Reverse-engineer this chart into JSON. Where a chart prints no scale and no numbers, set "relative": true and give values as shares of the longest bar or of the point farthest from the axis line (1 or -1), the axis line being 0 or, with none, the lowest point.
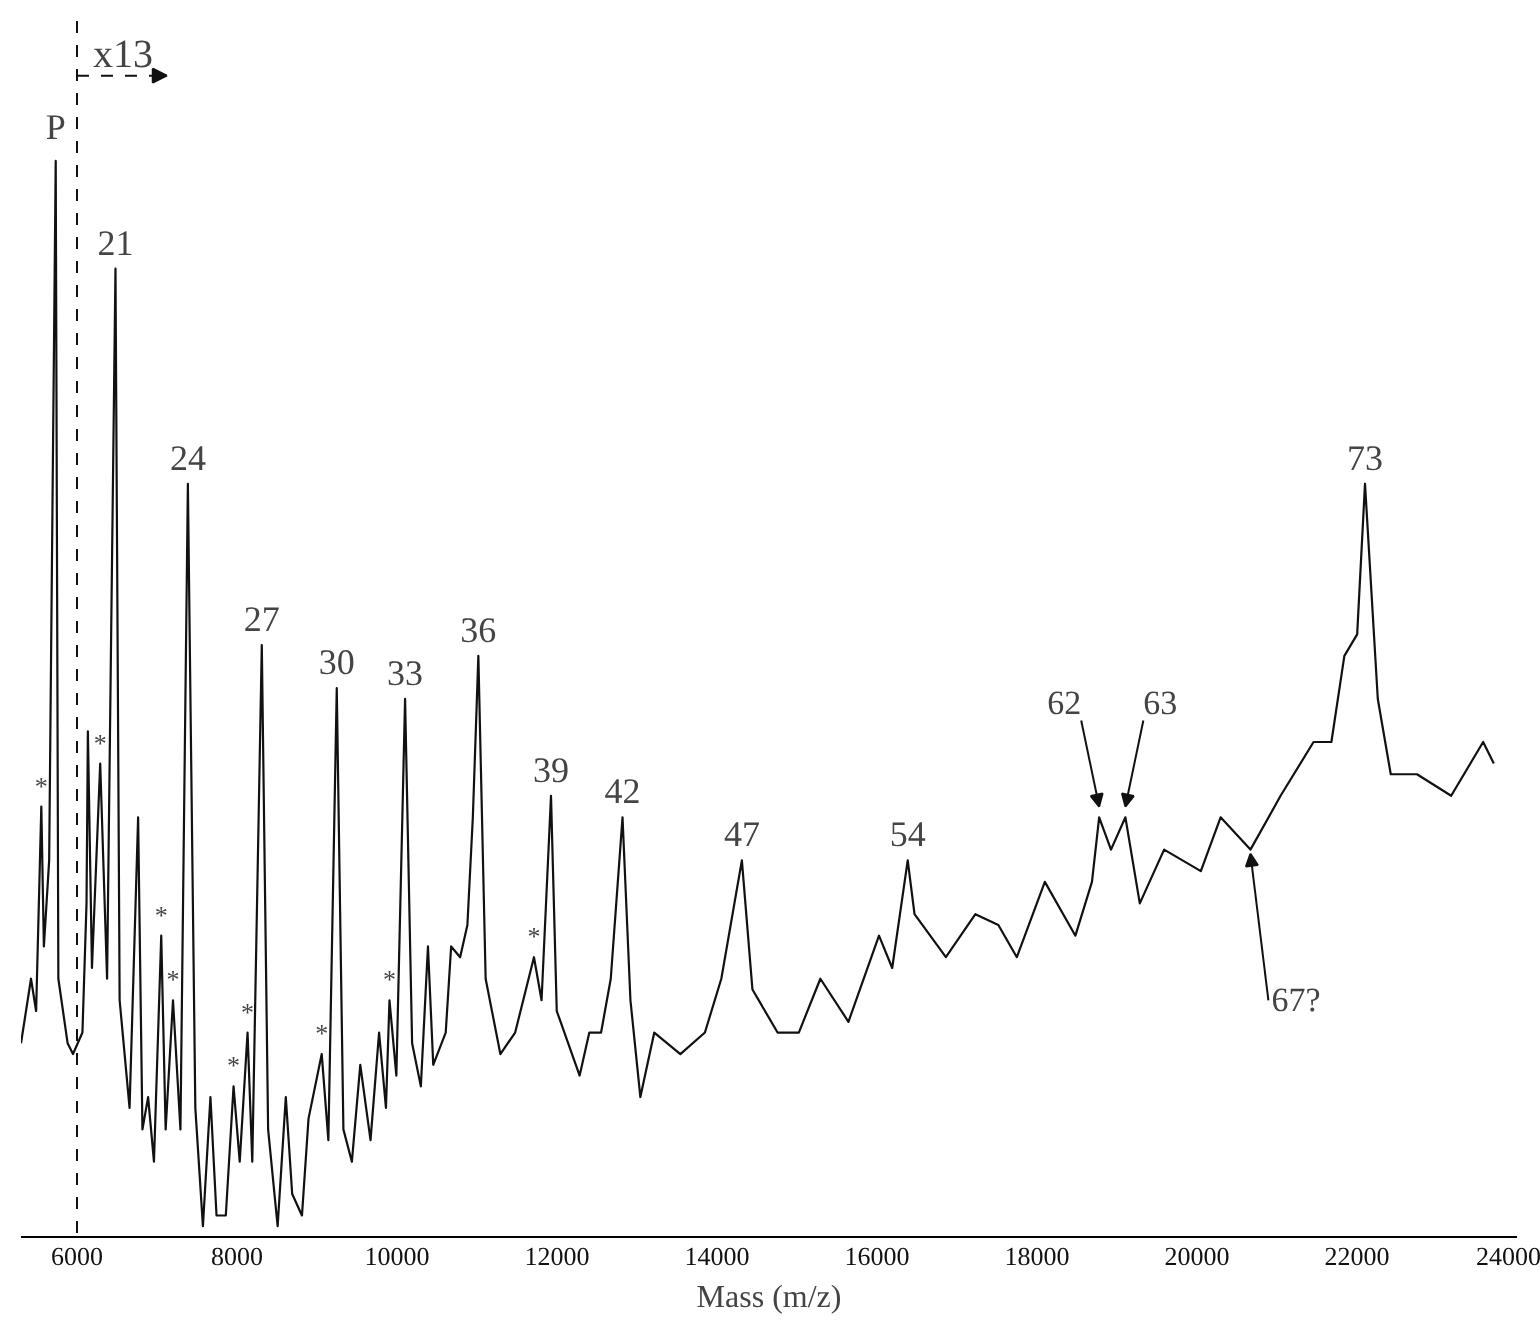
{
  "chart_data": {
    "type": "line",
    "relative": true,
    "xlabel": "Mass (m/z)",
    "xlim": [
      5300,
      24000
    ],
    "xticks": [
      6000,
      8000,
      10000,
      12000,
      14000,
      16000,
      18000,
      20000,
      22000,
      24000
    ],
    "tick_labels": "x",
    "grid": false,
    "marker": "none",
    "line_style": "solid",
    "series": [
      {
        "color": "#111111",
        "x": [
          5300,
          5425,
          5489,
          5554,
          5586,
          5652,
          5734,
          5767,
          5883,
          5950,
          6068,
          6119,
          6136,
          6187,
          6290,
          6376,
          6481,
          6533,
          6657,
          6764,
          6818,
          6889,
          6962,
          7053,
          7108,
          7200,
          7293,
          7386,
          7479,
          7574,
          7668,
          7744,
          7860,
          7957,
          8034,
          8132,
          8191,
          8310,
          8389,
          8508,
          8610,
          8690,
          8812,
          8894,
          9059,
          9142,
          9247,
          9330,
          9436,
          9541,
          9669,
          9776,
          9862,
          9906,
          9992,
          10101,
          10189,
          10298,
          10387,
          10453,
          10609,
          10677,
          10789,
          10880,
          10948,
          11017,
          11108,
          11292,
          11477,
          11712,
          11807,
          11925,
          11997,
          12283,
          12404,
          12551,
          12672,
          12819,
          12918,
          13042,
          13216,
          13542,
          13849,
          14054,
          14311,
          14443,
          14757,
          15023,
          15292,
          15643,
          16025,
          16190,
          16384,
          16469,
          16861,
          17230,
          17517,
          17748,
          18098,
          18480,
          18687,
          18777,
          18925,
          19105,
          19285,
          19589,
          20048,
          20295,
          20668,
          21045,
          21457,
          21680,
          21842,
          22002,
          22100,
          22260,
          22422,
          22750,
          23177,
          23577,
          23710
        ],
        "values": [
          0.18,
          0.24,
          0.21,
          0.4,
          0.27,
          0.35,
          1.0,
          0.24,
          0.18,
          0.17,
          0.19,
          0.31,
          0.47,
          0.25,
          0.44,
          0.24,
          0.9,
          0.22,
          0.12,
          0.39,
          0.1,
          0.13,
          0.07,
          0.28,
          0.1,
          0.22,
          0.1,
          0.7,
          0.12,
          0.01,
          0.13,
          0.02,
          0.02,
          0.14,
          0.07,
          0.19,
          0.07,
          0.55,
          0.1,
          0.01,
          0.13,
          0.04,
          0.02,
          0.11,
          0.17,
          0.09,
          0.51,
          0.1,
          0.07,
          0.16,
          0.09,
          0.19,
          0.12,
          0.22,
          0.15,
          0.5,
          0.18,
          0.14,
          0.27,
          0.16,
          0.19,
          0.27,
          0.26,
          0.29,
          0.39,
          0.54,
          0.24,
          0.17,
          0.19,
          0.26,
          0.22,
          0.41,
          0.21,
          0.15,
          0.19,
          0.19,
          0.24,
          0.39,
          0.22,
          0.13,
          0.19,
          0.17,
          0.19,
          0.24,
          0.35,
          0.23,
          0.19,
          0.19,
          0.24,
          0.2,
          0.28,
          0.25,
          0.35,
          0.3,
          0.26,
          0.3,
          0.29,
          0.26,
          0.33,
          0.28,
          0.33,
          0.39,
          0.36,
          0.39,
          0.31,
          0.36,
          0.34,
          0.39,
          0.36,
          0.41,
          0.46,
          0.46,
          0.54,
          0.56,
          0.7,
          0.5,
          0.43,
          0.43,
          0.41,
          0.46,
          0.44
        ]
      }
    ],
    "ref_lines": [
      {
        "axis": "x",
        "value": 6000,
        "label": "x13",
        "line_style": "dashed",
        "color": "#111111"
      }
    ],
    "annotations": [
      {
        "text": "P",
        "x": 5734,
        "y": 1.0
      },
      {
        "text": "21",
        "x": 6481,
        "y": 0.9
      },
      {
        "text": "24",
        "x": 7386,
        "y": 0.7
      },
      {
        "text": "27",
        "x": 8310,
        "y": 0.55
      },
      {
        "text": "30",
        "x": 9247,
        "y": 0.51
      },
      {
        "text": "33",
        "x": 10101,
        "y": 0.5
      },
      {
        "text": "36",
        "x": 11017,
        "y": 0.54
      },
      {
        "text": "39",
        "x": 11925,
        "y": 0.41
      },
      {
        "text": "42",
        "x": 12819,
        "y": 0.39
      },
      {
        "text": "47",
        "x": 14311,
        "y": 0.35
      },
      {
        "text": "54",
        "x": 16384,
        "y": 0.35
      },
      {
        "text": "62",
        "x": 18777,
        "y": 0.39
      },
      {
        "text": "63",
        "x": 19105,
        "y": 0.39
      },
      {
        "text": "73",
        "x": 22100,
        "y": 0.7
      },
      {
        "text": "67?",
        "x": 20668,
        "y": 0.36
      },
      {
        "text": "*",
        "x": 5554,
        "y": 0.4
      },
      {
        "text": "*",
        "x": 6290,
        "y": 0.44
      },
      {
        "text": "*",
        "x": 7053,
        "y": 0.28
      },
      {
        "text": "*",
        "x": 7200,
        "y": 0.22
      },
      {
        "text": "*",
        "x": 7957,
        "y": 0.14
      },
      {
        "text": "*",
        "x": 8132,
        "y": 0.19
      },
      {
        "text": "*",
        "x": 9059,
        "y": 0.17
      },
      {
        "text": "*",
        "x": 9906,
        "y": 0.22
      },
      {
        "text": "*",
        "x": 11712,
        "y": 0.26
      }
    ]
  }
}
